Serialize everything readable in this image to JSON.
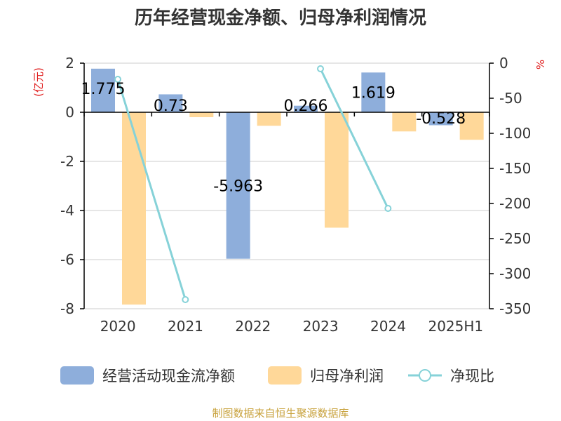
{
  "chart_data": {
    "type": "bar",
    "title": "历年经营现金净额、归母净利润情况",
    "categories": [
      "2020",
      "2021",
      "2022",
      "2023",
      "2024",
      "2025H1"
    ],
    "y_left": {
      "unit": "(亿元)",
      "ticks": [
        "2",
        "0",
        "-2",
        "-4",
        "-6",
        "-8"
      ],
      "ylim": [
        -8,
        2
      ]
    },
    "y_right": {
      "unit": "%",
      "ticks": [
        "0",
        "-50",
        "-100",
        "-150",
        "-200",
        "-250",
        "-300",
        "-350"
      ],
      "ylim": [
        -350,
        0
      ]
    },
    "series": [
      {
        "name": "经营活动现金流净额",
        "kind": "bar",
        "axis": "left",
        "color": "#8eaedb",
        "values": [
          1.775,
          0.73,
          -5.963,
          0.266,
          1.619,
          -0.528
        ],
        "labels": [
          "1.775",
          "0.73",
          "-5.963",
          "0.266",
          "1.619",
          "-0.528"
        ]
      },
      {
        "name": "归母净利润",
        "kind": "bar",
        "axis": "left",
        "color": "#ffd899",
        "values": [
          -7.83,
          -0.2,
          -0.55,
          -4.7,
          -0.78,
          -1.12
        ]
      },
      {
        "name": "净现比",
        "kind": "line",
        "axis": "right",
        "color": "#86d2d8",
        "values": [
          -23,
          -337,
          null,
          -8,
          -207,
          null
        ]
      }
    ],
    "legend_position": "bottom",
    "grid": true
  },
  "footer": {
    "source": "制图数据来自恒生聚源数据库"
  }
}
